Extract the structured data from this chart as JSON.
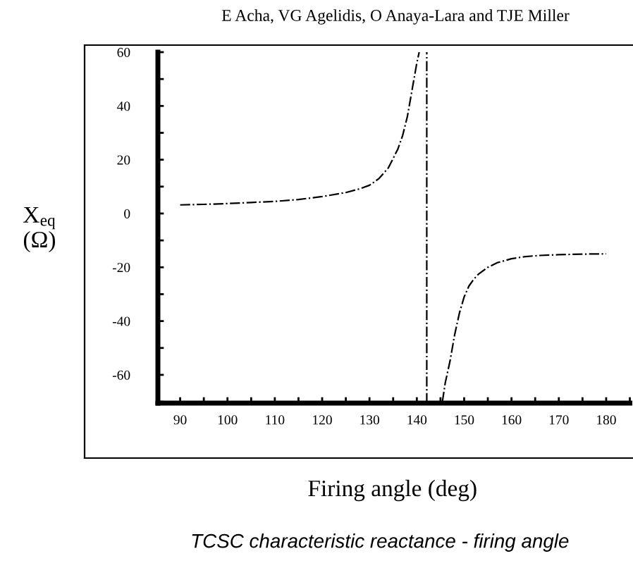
{
  "chart_data": {
    "type": "line",
    "title": "E Acha, VG Agelidis, O Anaya-Lara and TJE Miller",
    "xlabel": "Firing angle (deg)",
    "ylabel": "X$_{eq}$\n(Ω)",
    "annotations": [
      "TCSC characteristic reactance - firing angle"
    ],
    "series": [
      {
        "color": "#000000",
        "x": [
          90,
          95,
          100,
          105,
          110,
          115,
          120,
          125,
          128,
          130,
          132,
          134,
          136,
          137,
          138,
          139,
          140,
          140.5
        ],
        "values": [
          3.2,
          3.4,
          3.7,
          4.1,
          4.5,
          5.2,
          6.3,
          7.8,
          9.2,
          10.5,
          13,
          17,
          24,
          29,
          36,
          46,
          56,
          60
        ]
      },
      {
        "color": "#000000",
        "x": [
          145.4,
          146,
          147,
          148,
          149,
          150,
          151,
          152,
          153,
          155,
          157,
          160,
          163,
          166,
          170,
          175,
          180
        ],
        "values": [
          -70,
          -63,
          -55,
          -45,
          -37,
          -31,
          -27,
          -24.5,
          -22.6,
          -20,
          -18.3,
          -16.8,
          -16,
          -15.6,
          -15.3,
          -15.1,
          -15
        ]
      }
    ],
    "ref_lines": [
      {
        "axis": "x",
        "value": 142.1,
        "color": "#000000",
        "line_style": "dashdot"
      }
    ],
    "line_style": "dashdot",
    "marker": "none",
    "grid": false,
    "legend": false,
    "xlim": [
      85.3,
      185
    ],
    "ylim": [
      -70.5,
      60
    ],
    "xticks": [
      90,
      100,
      110,
      120,
      130,
      140,
      150,
      160,
      170,
      180
    ],
    "yticks": [
      -60,
      -40,
      -20,
      0,
      20,
      40,
      60
    ]
  }
}
